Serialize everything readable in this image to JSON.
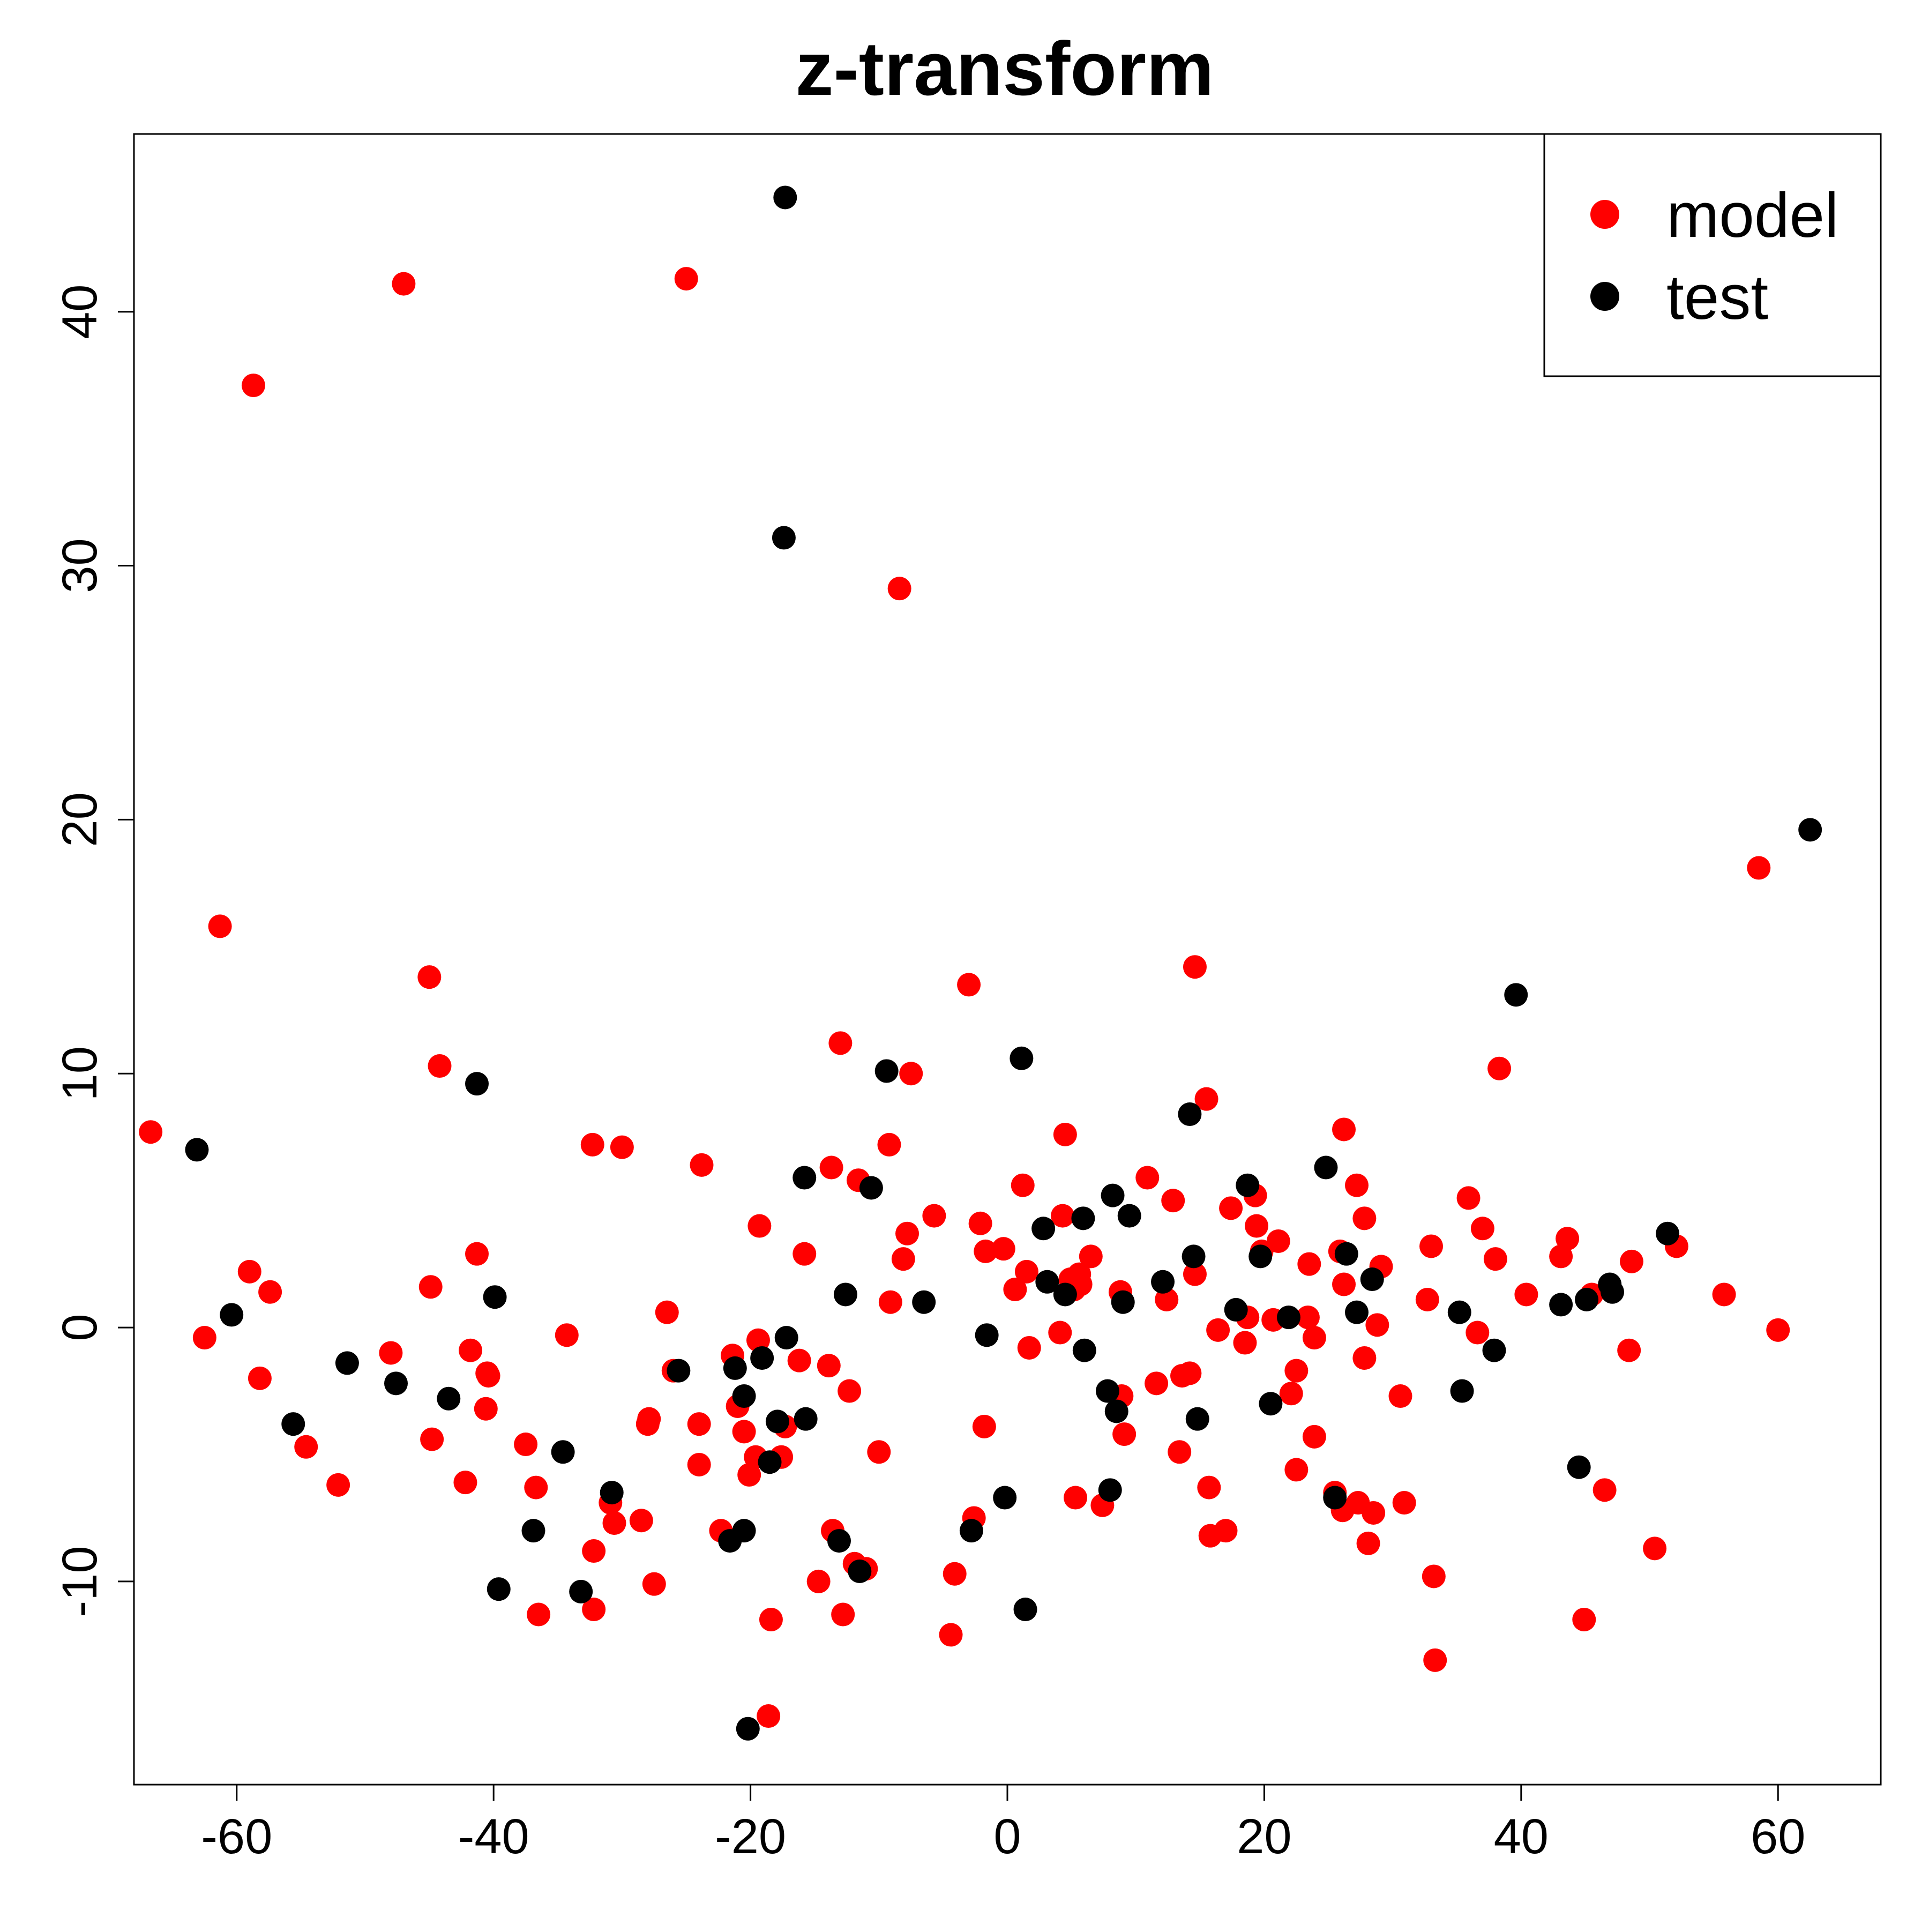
{
  "chart_data": {
    "type": "scatter",
    "title": "z-transform",
    "xlabel": "",
    "ylabel": "",
    "xlim": [
      -68,
      68
    ],
    "ylim": [
      -18,
      47
    ],
    "x_ticks": [
      -60,
      -40,
      -20,
      0,
      20,
      40,
      60
    ],
    "y_ticks": [
      -10,
      0,
      10,
      20,
      30,
      40
    ],
    "grid": false,
    "legend_position": "top-right",
    "series": [
      {
        "name": "model",
        "color": "#ff0000",
        "points": [
          [
            -66.7,
            7.7
          ],
          [
            -62.5,
            -0.4
          ],
          [
            -61.3,
            15.8
          ],
          [
            -58.7,
            37.1
          ],
          [
            -59.0,
            2.2
          ],
          [
            -58.2,
            -2.0
          ],
          [
            -57.4,
            1.4
          ],
          [
            -54.6,
            -4.7
          ],
          [
            -52.1,
            -6.2
          ],
          [
            -48.0,
            -1.0
          ],
          [
            -47.0,
            41.1
          ],
          [
            -45.0,
            13.8
          ],
          [
            -44.9,
            1.6
          ],
          [
            -44.8,
            -4.4
          ],
          [
            -44.2,
            10.3
          ],
          [
            -42.2,
            -6.1
          ],
          [
            -41.8,
            -0.9
          ],
          [
            -41.3,
            2.9
          ],
          [
            -40.6,
            -3.2
          ],
          [
            -40.5,
            -1.8
          ],
          [
            -40.4,
            -1.9
          ],
          [
            -37.5,
            -4.6
          ],
          [
            -36.7,
            -6.3
          ],
          [
            -36.5,
            -11.3
          ],
          [
            -34.3,
            -0.3
          ],
          [
            -32.3,
            7.2
          ],
          [
            -32.2,
            -11.1
          ],
          [
            -32.2,
            -8.8
          ],
          [
            -30.9,
            -6.9
          ],
          [
            -30.6,
            -7.7
          ],
          [
            -30.0,
            7.1
          ],
          [
            -28.5,
            -7.6
          ],
          [
            -28.0,
            -3.8
          ],
          [
            -27.9,
            -3.6
          ],
          [
            -27.5,
            -10.1
          ],
          [
            -26.5,
            0.6
          ],
          [
            -26.0,
            -1.7
          ],
          [
            -25.0,
            41.3
          ],
          [
            -23.8,
            6.4
          ],
          [
            -24.0,
            -3.8
          ],
          [
            -24.0,
            -5.4
          ],
          [
            -22.3,
            -8.0
          ],
          [
            -21.4,
            -1.1
          ],
          [
            -21.0,
            -3.1
          ],
          [
            -20.5,
            -4.1
          ],
          [
            -20.1,
            -5.8
          ],
          [
            -19.6,
            -5.1
          ],
          [
            -19.4,
            -0.5
          ],
          [
            -19.3,
            4.0
          ],
          [
            -18.6,
            -15.3
          ],
          [
            -18.4,
            -11.5
          ],
          [
            -17.6,
            -5.1
          ],
          [
            -17.3,
            -3.9
          ],
          [
            -16.2,
            -1.3
          ],
          [
            -15.8,
            2.9
          ],
          [
            -14.7,
            -10.0
          ],
          [
            -13.9,
            -1.5
          ],
          [
            -13.7,
            6.3
          ],
          [
            -13.6,
            -8.0
          ],
          [
            -13.0,
            11.2
          ],
          [
            -12.8,
            -11.3
          ],
          [
            -12.3,
            -2.5
          ],
          [
            -11.9,
            -9.3
          ],
          [
            -11.6,
            5.8
          ],
          [
            -11.0,
            -9.5
          ],
          [
            -10.0,
            -4.9
          ],
          [
            -9.2,
            7.2
          ],
          [
            -9.1,
            1.0
          ],
          [
            -8.4,
            29.1
          ],
          [
            -8.1,
            2.7
          ],
          [
            -7.8,
            3.7
          ],
          [
            -7.5,
            10.0
          ],
          [
            -5.7,
            4.4
          ],
          [
            -4.4,
            -12.1
          ],
          [
            -4.1,
            -9.7
          ],
          [
            -3.0,
            13.5
          ],
          [
            -2.6,
            -7.5
          ],
          [
            -2.1,
            4.1
          ],
          [
            -1.8,
            -3.9
          ],
          [
            -1.7,
            3.0
          ],
          [
            -0.3,
            3.1
          ],
          [
            0.6,
            1.5
          ],
          [
            1.2,
            5.6
          ],
          [
            1.5,
            2.2
          ],
          [
            1.7,
            -0.8
          ],
          [
            4.1,
            -0.2
          ],
          [
            4.3,
            4.4
          ],
          [
            4.5,
            7.6
          ],
          [
            4.9,
            1.9
          ],
          [
            5.2,
            1.5
          ],
          [
            5.3,
            -6.7
          ],
          [
            5.6,
            2.1
          ],
          [
            5.7,
            1.7
          ],
          [
            6.5,
            2.8
          ],
          [
            7.4,
            -7.0
          ],
          [
            8.9,
            -2.7
          ],
          [
            9.1,
            -4.2
          ],
          [
            8.8,
            1.4
          ],
          [
            10.9,
            5.9
          ],
          [
            11.6,
            -2.2
          ],
          [
            12.4,
            1.1
          ],
          [
            12.9,
            5.0
          ],
          [
            13.4,
            -4.9
          ],
          [
            13.6,
            -1.9
          ],
          [
            14.2,
            -1.8
          ],
          [
            14.6,
            14.2
          ],
          [
            14.6,
            2.1
          ],
          [
            15.5,
            9.0
          ],
          [
            15.7,
            -6.3
          ],
          [
            15.8,
            -8.2
          ],
          [
            16.4,
            -0.1
          ],
          [
            17.0,
            -8.0
          ],
          [
            17.4,
            4.7
          ],
          [
            18.5,
            -0.6
          ],
          [
            18.7,
            0.4
          ],
          [
            19.3,
            5.2
          ],
          [
            19.4,
            4.0
          ],
          [
            19.8,
            3.0
          ],
          [
            20.7,
            0.3
          ],
          [
            21.1,
            3.4
          ],
          [
            22.1,
            -2.6
          ],
          [
            22.5,
            -5.6
          ],
          [
            22.5,
            -1.7
          ],
          [
            23.4,
            0.4
          ],
          [
            23.5,
            2.5
          ],
          [
            23.9,
            -4.3
          ],
          [
            23.9,
            -0.4
          ],
          [
            25.5,
            -6.5
          ],
          [
            25.9,
            3.0
          ],
          [
            26.1,
            -7.2
          ],
          [
            26.2,
            7.8
          ],
          [
            26.2,
            1.7
          ],
          [
            27.2,
            5.6
          ],
          [
            27.3,
            -6.9
          ],
          [
            27.8,
            -1.2
          ],
          [
            27.8,
            4.3
          ],
          [
            28.1,
            -8.5
          ],
          [
            28.5,
            -7.3
          ],
          [
            28.8,
            0.1
          ],
          [
            29.1,
            2.4
          ],
          [
            30.6,
            -2.7
          ],
          [
            30.9,
            -6.9
          ],
          [
            32.7,
            1.1
          ],
          [
            33.0,
            3.2
          ],
          [
            33.2,
            -9.8
          ],
          [
            33.3,
            -13.1
          ],
          [
            35.9,
            5.1
          ],
          [
            36.6,
            -0.2
          ],
          [
            37.0,
            3.9
          ],
          [
            38.0,
            2.7
          ],
          [
            38.3,
            10.2
          ],
          [
            40.4,
            1.3
          ],
          [
            43.1,
            2.8
          ],
          [
            43.6,
            3.5
          ],
          [
            44.9,
            -11.5
          ],
          [
            45.5,
            1.3
          ],
          [
            46.5,
            -6.4
          ],
          [
            48.4,
            -0.9
          ],
          [
            48.6,
            2.6
          ],
          [
            50.4,
            -8.7
          ],
          [
            52.1,
            3.2
          ],
          [
            55.8,
            1.3
          ],
          [
            58.5,
            18.1
          ],
          [
            60.0,
            -0.1
          ]
        ]
      },
      {
        "name": "test",
        "color": "#000000",
        "points": [
          [
            -63.1,
            7.0
          ],
          [
            -60.4,
            0.5
          ],
          [
            -55.6,
            -3.8
          ],
          [
            -51.4,
            -1.4
          ],
          [
            -47.6,
            -2.2
          ],
          [
            -43.5,
            -2.8
          ],
          [
            -41.3,
            9.6
          ],
          [
            -39.9,
            1.2
          ],
          [
            -39.6,
            -10.3
          ],
          [
            -36.9,
            -8.0
          ],
          [
            -34.6,
            -4.9
          ],
          [
            -33.2,
            -10.4
          ],
          [
            -30.8,
            -6.5
          ],
          [
            -25.6,
            -1.7
          ],
          [
            -21.6,
            -8.4
          ],
          [
            -21.2,
            -1.6
          ],
          [
            -20.5,
            -2.7
          ],
          [
            -20.5,
            -8.0
          ],
          [
            -20.2,
            -15.8
          ],
          [
            -19.1,
            -1.2
          ],
          [
            -18.5,
            -5.3
          ],
          [
            -17.9,
            -3.7
          ],
          [
            -17.3,
            44.5
          ],
          [
            -17.4,
            31.1
          ],
          [
            -17.2,
            -0.4
          ],
          [
            -15.8,
            5.9
          ],
          [
            -15.7,
            -3.6
          ],
          [
            -13.1,
            -8.4
          ],
          [
            -12.6,
            1.3
          ],
          [
            -11.5,
            -9.6
          ],
          [
            -10.6,
            5.5
          ],
          [
            -9.4,
            10.1
          ],
          [
            -6.5,
            1.0
          ],
          [
            -2.8,
            -8.0
          ],
          [
            -1.6,
            -0.3
          ],
          [
            -0.2,
            -6.7
          ],
          [
            1.1,
            10.6
          ],
          [
            1.4,
            -11.1
          ],
          [
            2.8,
            3.9
          ],
          [
            3.1,
            1.8
          ],
          [
            4.5,
            1.3
          ],
          [
            5.9,
            4.3
          ],
          [
            6.0,
            -0.9
          ],
          [
            7.8,
            -2.5
          ],
          [
            8.0,
            -6.4
          ],
          [
            8.2,
            5.2
          ],
          [
            8.5,
            -3.3
          ],
          [
            9.0,
            1.0
          ],
          [
            9.5,
            4.4
          ],
          [
            12.1,
            1.8
          ],
          [
            14.2,
            8.4
          ],
          [
            14.5,
            2.8
          ],
          [
            14.8,
            -3.6
          ],
          [
            17.8,
            0.7
          ],
          [
            18.7,
            5.6
          ],
          [
            19.7,
            2.8
          ],
          [
            20.5,
            -3.0
          ],
          [
            21.9,
            0.4
          ],
          [
            24.8,
            6.3
          ],
          [
            25.5,
            -6.7
          ],
          [
            26.4,
            2.9
          ],
          [
            27.2,
            0.6
          ],
          [
            28.4,
            1.9
          ],
          [
            35.2,
            0.6
          ],
          [
            35.4,
            -2.5
          ],
          [
            37.9,
            -0.9
          ],
          [
            39.6,
            13.1
          ],
          [
            43.1,
            0.9
          ],
          [
            44.5,
            -5.5
          ],
          [
            45.1,
            1.1
          ],
          [
            46.9,
            1.7
          ],
          [
            47.1,
            1.4
          ],
          [
            51.4,
            3.7
          ],
          [
            62.5,
            19.6
          ]
        ]
      }
    ]
  }
}
